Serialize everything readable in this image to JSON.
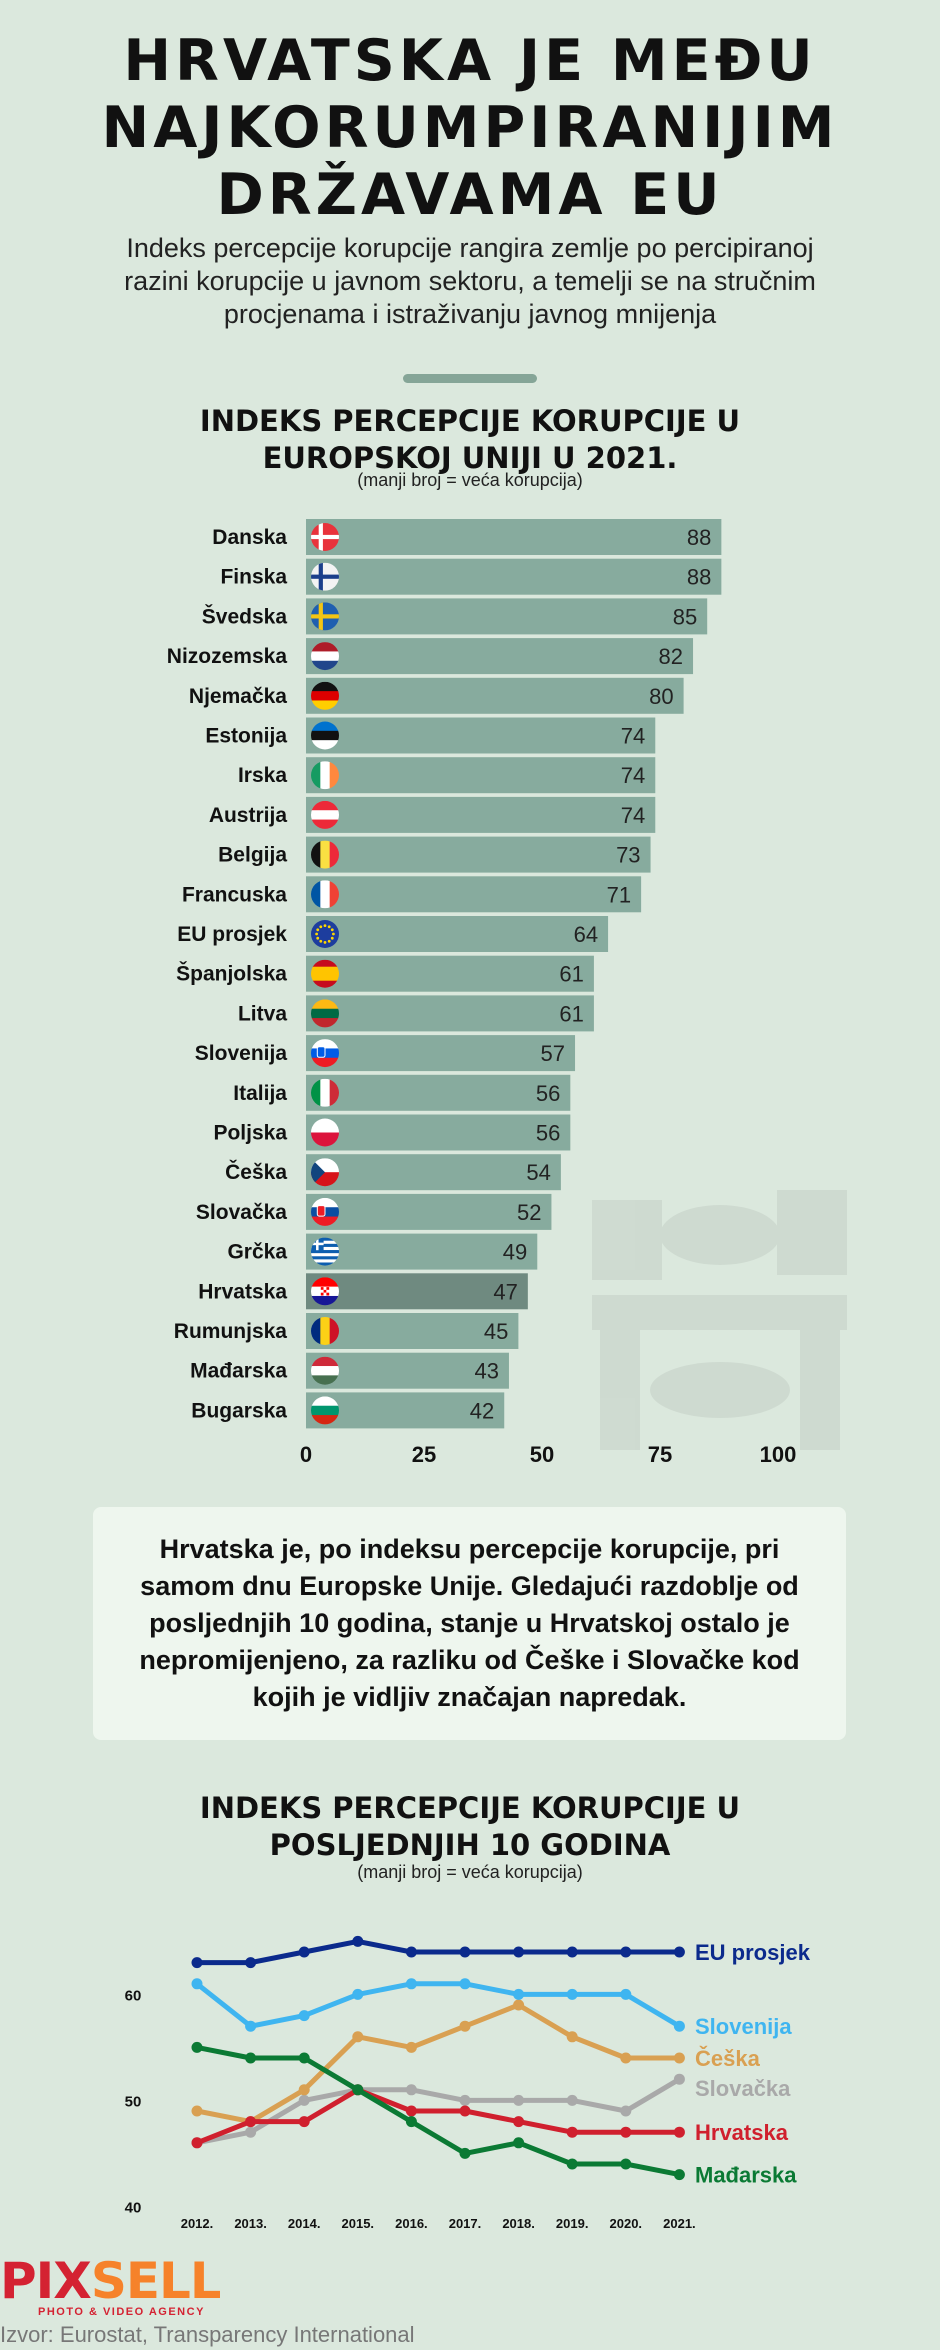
{
  "header": {
    "title_lines": [
      "HRVATSKA JE MEĐU",
      "NAJKORUMPIRANIJIM",
      "DRŽAVAMA EU"
    ],
    "intro": "Indeks percepcije korupcije rangira zemlje po percipiranoj razini korupcije u javnom sektoru, a temelji se na stručnim procjenama i istraživanju javnog mnijenja"
  },
  "note": "Hrvatska je, po indeksu percepcije korupcije, pri samom dnu Europske Unije. Gledajući razdoblje od posljednjih 10 godina, stanje u Hrvatskoj ostalo je nepromijenjeno, za razliku od Češke i Slovačke kod kojih je vidljiv značajan napredak.",
  "footer": {
    "logo_text": "PIXSELL",
    "logo_tagline": "PHOTO & VIDEO AGENCY",
    "source": "Izvor: Eurostat, Transparency International"
  },
  "colors": {
    "background": "#dbe8dd",
    "bar": "#87ab9e",
    "bar_highlight": "#6f8a80",
    "note_background": "#eef6ee"
  },
  "chart_data": [
    {
      "type": "bar",
      "orientation": "horizontal",
      "title_lines": [
        "INDEKS PERCEPCIJE KORUPCIJE U",
        "EUROPSKOJ UNIJI U 2021."
      ],
      "subtitle": "(manji broj = veća korupcija)",
      "xlim": [
        0,
        100
      ],
      "xticks": [
        "0",
        "25",
        "50",
        "75",
        "100"
      ],
      "highlight": "Hrvatska",
      "categories": [
        "Danska",
        "Finska",
        "Švedska",
        "Nizozemska",
        "Njemačka",
        "Estonija",
        "Irska",
        "Austrija",
        "Belgija",
        "Francuska",
        "EU prosjek",
        "Španjolska",
        "Litva",
        "Slovenija",
        "Italija",
        "Poljska",
        "Češka",
        "Slovačka",
        "Grčka",
        "Hrvatska",
        "Rumunjska",
        "Mađarska",
        "Bugarska"
      ],
      "values": [
        88,
        88,
        85,
        82,
        80,
        74,
        74,
        74,
        73,
        71,
        64,
        61,
        61,
        57,
        56,
        56,
        54,
        52,
        49,
        47,
        45,
        43,
        42
      ],
      "flag_icons": [
        "flag-denmark-icon",
        "flag-finland-icon",
        "flag-sweden-icon",
        "flag-netherlands-icon",
        "flag-germany-icon",
        "flag-estonia-icon",
        "flag-ireland-icon",
        "flag-austria-icon",
        "flag-belgium-icon",
        "flag-france-icon",
        "flag-eu-icon",
        "flag-spain-icon",
        "flag-lithuania-icon",
        "flag-slovenia-icon",
        "flag-italy-icon",
        "flag-poland-icon",
        "flag-czechia-icon",
        "flag-slovakia-icon",
        "flag-greece-icon",
        "flag-croatia-icon",
        "flag-romania-icon",
        "flag-hungary-icon",
        "flag-bulgaria-icon"
      ],
      "decoration_icon": "handshake-bribe-icon"
    },
    {
      "type": "line",
      "title_lines": [
        "INDEKS PERCEPCIJE KORUPCIJE U",
        "POSLJEDNJIH 10 GODINA"
      ],
      "subtitle": "(manji broj = veća korupcija)",
      "x": [
        "2012.",
        "2013.",
        "2014.",
        "2015.",
        "2016.",
        "2017.",
        "2018.",
        "2019.",
        "2020.",
        "2021."
      ],
      "yticks": [
        "40",
        "50",
        "60"
      ],
      "ylim": [
        40,
        66
      ],
      "legend": "right-end labels",
      "series": [
        {
          "name": "EU prosjek",
          "color": "#0b2a8c",
          "values": [
            63,
            63,
            64,
            65,
            64,
            64,
            64,
            64,
            64,
            64
          ]
        },
        {
          "name": "Slovenija",
          "color": "#3fb5f0",
          "values": [
            61,
            57,
            58,
            60,
            61,
            61,
            60,
            60,
            60,
            57
          ]
        },
        {
          "name": "Češka",
          "color": "#d9a052",
          "values": [
            49,
            48,
            51,
            56,
            55,
            57,
            59,
            56,
            54,
            54
          ]
        },
        {
          "name": "Slovačka",
          "color": "#a9a9a9",
          "values": [
            46,
            47,
            50,
            51,
            51,
            50,
            50,
            50,
            49,
            52
          ]
        },
        {
          "name": "Hrvatska",
          "color": "#d0202e",
          "values": [
            46,
            48,
            48,
            51,
            49,
            49,
            48,
            47,
            47,
            47
          ]
        },
        {
          "name": "Mađarska",
          "color": "#0b7a34",
          "values": [
            55,
            54,
            54,
            51,
            48,
            45,
            46,
            44,
            44,
            43
          ]
        }
      ]
    }
  ]
}
